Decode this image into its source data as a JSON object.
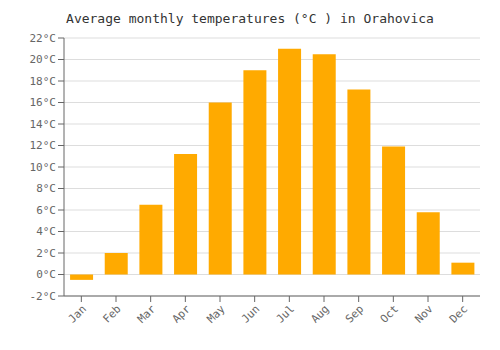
{
  "chart_data": {
    "type": "bar",
    "title": "Average monthly temperatures (°C ) in Orahovica",
    "categories": [
      "Jan",
      "Feb",
      "Mar",
      "Apr",
      "May",
      "Jun",
      "Jul",
      "Aug",
      "Sep",
      "Oct",
      "Nov",
      "Dec"
    ],
    "values": [
      -0.5,
      2.0,
      6.5,
      11.2,
      16.0,
      19.0,
      21.0,
      20.5,
      17.2,
      11.9,
      5.8,
      1.1
    ],
    "color": "#FFAA00",
    "ylim": [
      -2,
      22
    ],
    "yticks": [
      {
        "value": -2,
        "label": "-2°C"
      },
      {
        "value": 0,
        "label": "0°C"
      },
      {
        "value": 2,
        "label": "2°C"
      },
      {
        "value": 4,
        "label": "4°C"
      },
      {
        "value": 6,
        "label": "6°C"
      },
      {
        "value": 8,
        "label": "8°C"
      },
      {
        "value": 10,
        "label": "10°C"
      },
      {
        "value": 12,
        "label": "12°C"
      },
      {
        "value": 14,
        "label": "14°C"
      },
      {
        "value": 16,
        "label": "16°C"
      },
      {
        "value": 18,
        "label": "18°C"
      },
      {
        "value": 20,
        "label": "20°C"
      },
      {
        "value": 22,
        "label": "22°C"
      }
    ],
    "grid": true
  }
}
